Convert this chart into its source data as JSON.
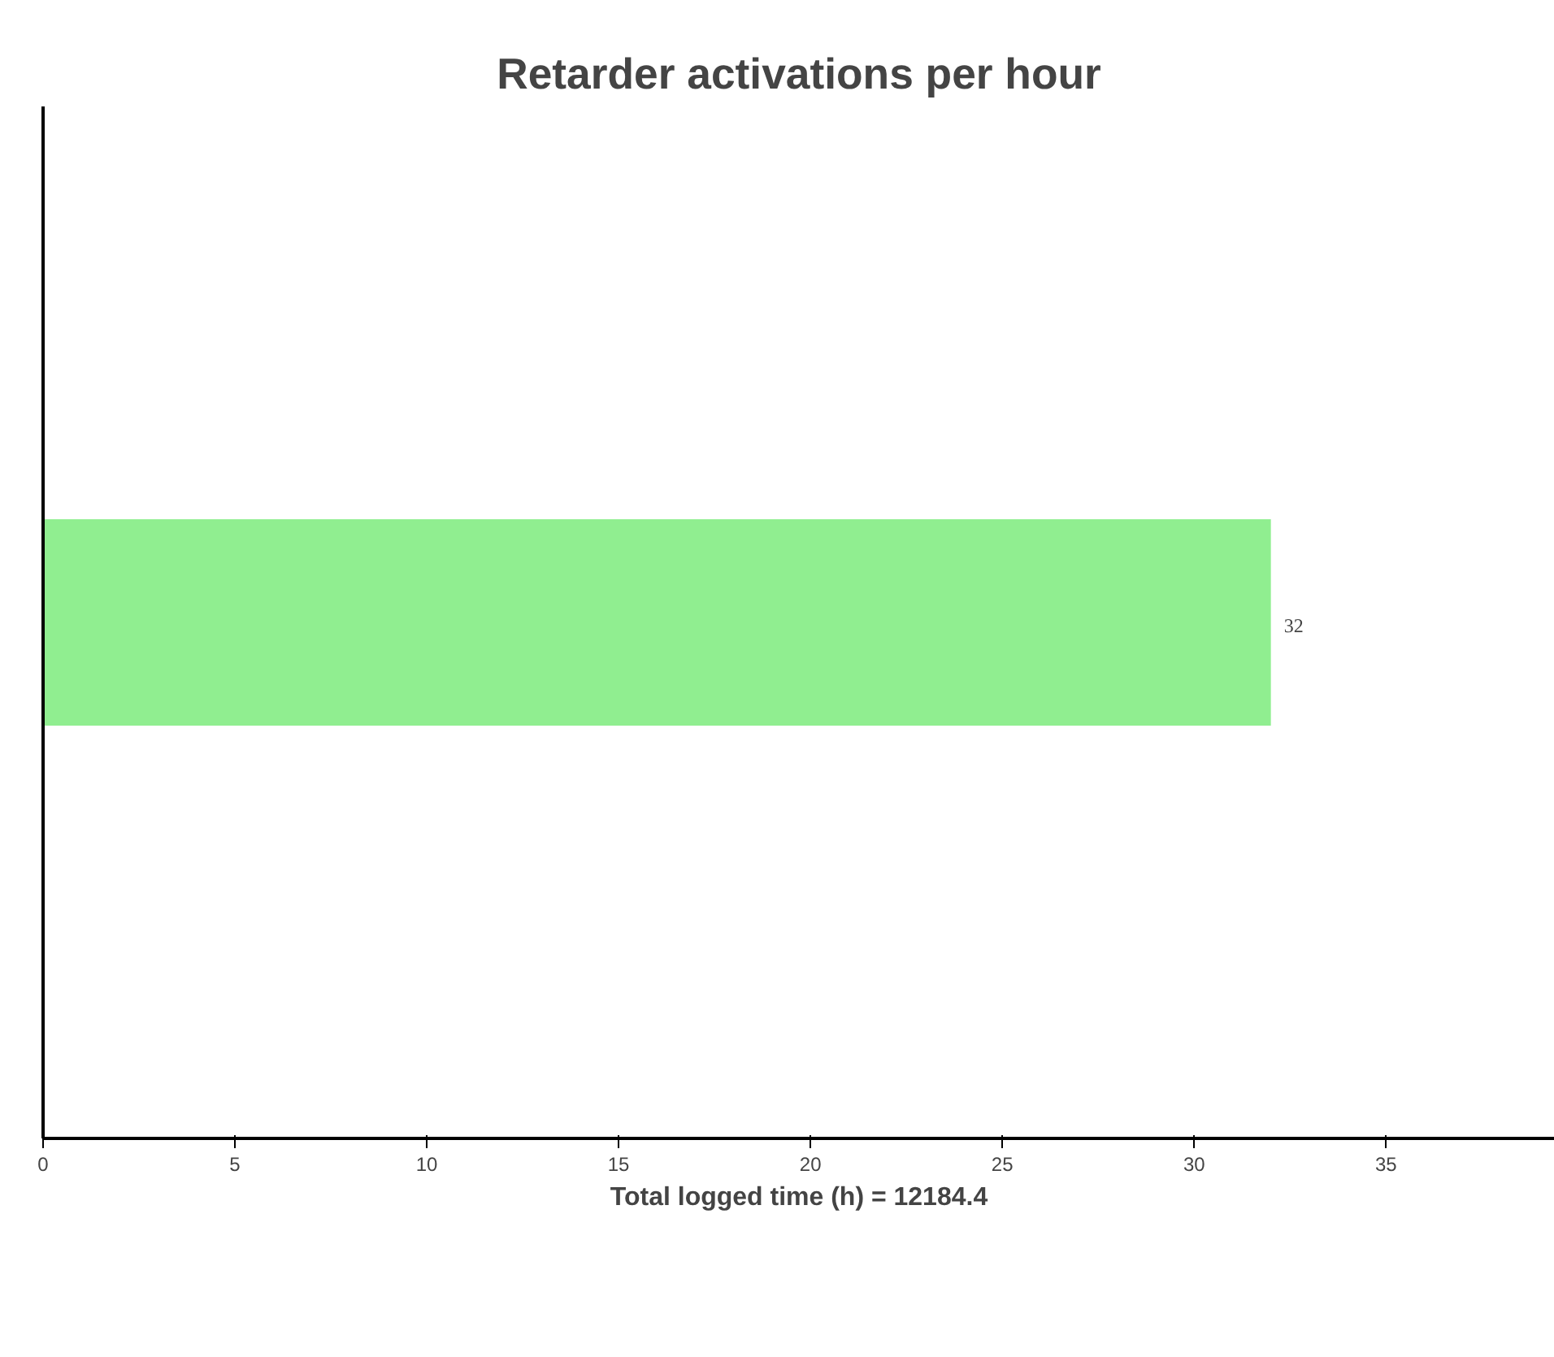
{
  "chart_data": {
    "type": "bar",
    "orientation": "horizontal",
    "title": "Retarder activations per hour",
    "xlabel": "Total logged time (h) = 12184.4",
    "categories": [
      null
    ],
    "series": [
      {
        "color": "#90ee90",
        "values": [
          32
        ]
      }
    ],
    "xlim": [
      0,
      39.4
    ],
    "xticks": [
      0,
      5,
      10,
      15,
      20,
      25,
      30,
      35
    ],
    "data_labels": true,
    "grid": false
  }
}
